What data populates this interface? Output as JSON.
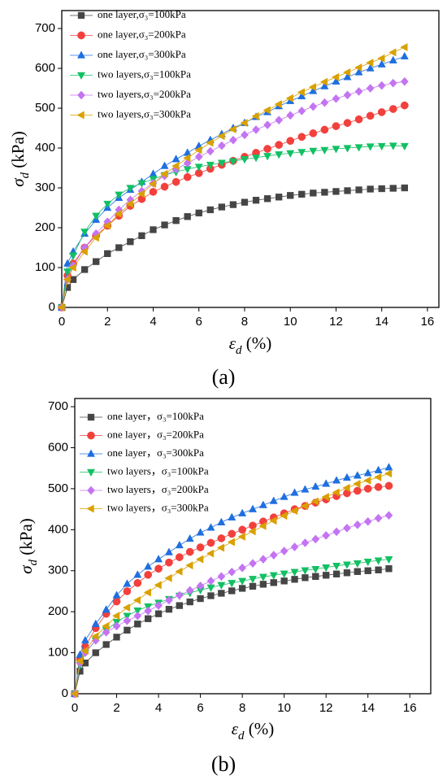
{
  "chart_data": [
    {
      "type": "line",
      "caption": "(a)",
      "x_label": {
        "symbol": "ε",
        "subscript": "d",
        "unit": " (%)"
      },
      "y_label": {
        "symbol": "σ",
        "subscript": "d",
        "unit": " (kPa)"
      },
      "xlim": [
        0,
        16.5
      ],
      "ylim": [
        0,
        745
      ],
      "xticks": [
        0,
        2,
        4,
        6,
        8,
        10,
        12,
        14,
        16
      ],
      "yticks": [
        0,
        100,
        200,
        300,
        400,
        500,
        600,
        700
      ],
      "x": [
        0,
        0.25,
        0.5,
        1,
        1.5,
        2,
        2.5,
        3,
        3.5,
        4,
        4.5,
        5,
        5.5,
        6,
        6.5,
        7,
        7.5,
        8,
        8.5,
        9,
        9.5,
        10,
        10.5,
        11,
        11.5,
        12,
        12.5,
        13,
        13.5,
        14,
        14.5,
        15
      ],
      "series": [
        {
          "name": "one layer,σ₃=100kPa",
          "color": "#454545",
          "marker": "square",
          "values": [
            0,
            50,
            70,
            95,
            115,
            135,
            150,
            165,
            180,
            195,
            207,
            218,
            228,
            237,
            245,
            252,
            258,
            264,
            269,
            273,
            277,
            281,
            284,
            287,
            289,
            291,
            293,
            295,
            297,
            298,
            299,
            300
          ]
        },
        {
          "name": "one layer,σ₃=200kPa",
          "color": "#f2403c",
          "marker": "circle",
          "values": [
            0,
            80,
            110,
            150,
            180,
            205,
            230,
            255,
            272,
            290,
            303,
            315,
            327,
            337,
            348,
            358,
            368,
            378,
            388,
            398,
            408,
            418,
            428,
            437,
            446,
            455,
            463,
            472,
            481,
            490,
            498,
            507
          ]
        },
        {
          "name": "one layer,σ₃=300kPa",
          "color": "#1f6fe0",
          "marker": "triangle-up",
          "values": [
            0,
            110,
            140,
            185,
            220,
            250,
            275,
            295,
            315,
            335,
            355,
            372,
            388,
            405,
            420,
            435,
            450,
            463,
            478,
            490,
            505,
            518,
            530,
            543,
            555,
            567,
            578,
            590,
            600,
            610,
            620,
            630
          ]
        },
        {
          "name": "two layers,σ₃=100kPa",
          "color": "#12c063",
          "marker": "triangle-down",
          "values": [
            0,
            90,
            130,
            190,
            230,
            260,
            283,
            300,
            312,
            322,
            332,
            340,
            347,
            353,
            358,
            363,
            367,
            372,
            376,
            380,
            384,
            387,
            390,
            393,
            395,
            398,
            400,
            402,
            404,
            405,
            406,
            405
          ]
        },
        {
          "name": "two layers,σ₃=200kPa",
          "color": "#c474f2",
          "marker": "diamond",
          "values": [
            0,
            70,
            105,
            150,
            185,
            215,
            245,
            270,
            292,
            312,
            330,
            347,
            362,
            378,
            392,
            406,
            420,
            433,
            446,
            458,
            470,
            482,
            493,
            504,
            514,
            524,
            533,
            542,
            550,
            557,
            563,
            567
          ]
        },
        {
          "name": "two layers,σ₃=300kPa",
          "color": "#d9a100",
          "marker": "triangle-left",
          "values": [
            0,
            70,
            100,
            140,
            175,
            205,
            235,
            260,
            285,
            310,
            335,
            355,
            375,
            395,
            413,
            430,
            447,
            463,
            480,
            495,
            510,
            525,
            540,
            553,
            566,
            578,
            590,
            602,
            614,
            625,
            640,
            653
          ]
        }
      ]
    },
    {
      "type": "line",
      "caption": "(b)",
      "x_label": {
        "symbol": "ε",
        "subscript": "d",
        "unit": " (%)"
      },
      "y_label": {
        "symbol": "σ",
        "subscript": "d",
        "unit": " (kPa)"
      },
      "xlim": [
        0,
        17
      ],
      "ylim": [
        0,
        720
      ],
      "xticks": [
        0,
        2,
        4,
        6,
        8,
        10,
        12,
        14,
        16
      ],
      "yticks": [
        0,
        100,
        200,
        300,
        400,
        500,
        600,
        700
      ],
      "x": [
        0,
        0.25,
        0.5,
        1,
        1.5,
        2,
        2.5,
        3,
        3.5,
        4,
        4.5,
        5,
        5.5,
        6,
        6.5,
        7,
        7.5,
        8,
        8.5,
        9,
        9.5,
        10,
        10.5,
        11,
        11.5,
        12,
        12.5,
        13,
        13.5,
        14,
        14.5,
        15
      ],
      "series": [
        {
          "name": "one layer，σ₃=100kPa",
          "color": "#454545",
          "marker": "square",
          "values": [
            0,
            55,
            75,
            100,
            120,
            138,
            155,
            170,
            183,
            195,
            206,
            215,
            224,
            232,
            239,
            245,
            251,
            257,
            262,
            267,
            271,
            275,
            279,
            283,
            286,
            289,
            292,
            295,
            298,
            300,
            302,
            305
          ]
        },
        {
          "name": "one layer，σ₃=200kPa",
          "color": "#f2403c",
          "marker": "circle",
          "values": [
            0,
            85,
            115,
            160,
            195,
            225,
            250,
            270,
            290,
            305,
            320,
            333,
            346,
            357,
            368,
            379,
            390,
            400,
            410,
            420,
            430,
            440,
            450,
            458,
            466,
            474,
            482,
            489,
            495,
            500,
            504,
            507
          ]
        },
        {
          "name": "one layer，σ₃=300kPa",
          "color": "#1f6fe0",
          "marker": "triangle-up",
          "values": [
            0,
            95,
            130,
            170,
            205,
            240,
            268,
            290,
            310,
            328,
            345,
            362,
            378,
            393,
            405,
            418,
            430,
            440,
            450,
            460,
            470,
            480,
            490,
            498,
            505,
            512,
            520,
            527,
            532,
            538,
            545,
            552
          ]
        },
        {
          "name": "two layers，σ₃=100kPa",
          "color": "#12c063",
          "marker": "triangle-down",
          "values": [
            0,
            70,
            100,
            130,
            155,
            175,
            190,
            203,
            213,
            222,
            231,
            239,
            246,
            253,
            259,
            265,
            270,
            275,
            280,
            285,
            289,
            293,
            297,
            301,
            304,
            308,
            312,
            315,
            318,
            322,
            325,
            328
          ]
        },
        {
          "name": "two layers，σ₃=200kPa",
          "color": "#c474f2",
          "marker": "diamond",
          "values": [
            0,
            75,
            100,
            130,
            150,
            165,
            178,
            190,
            202,
            215,
            228,
            240,
            252,
            263,
            275,
            286,
            297,
            307,
            318,
            328,
            338,
            348,
            358,
            368,
            377,
            386,
            395,
            404,
            412,
            420,
            428,
            435
          ]
        },
        {
          "name": "two layers，σ₃=300kPa",
          "color": "#d9a100",
          "marker": "triangle-left",
          "values": [
            0,
            80,
            105,
            140,
            165,
            190,
            210,
            228,
            247,
            265,
            282,
            298,
            313,
            328,
            342,
            356,
            370,
            383,
            396,
            409,
            422,
            434,
            446,
            458,
            469,
            480,
            491,
            502,
            512,
            520,
            528,
            537
          ]
        }
      ]
    }
  ]
}
